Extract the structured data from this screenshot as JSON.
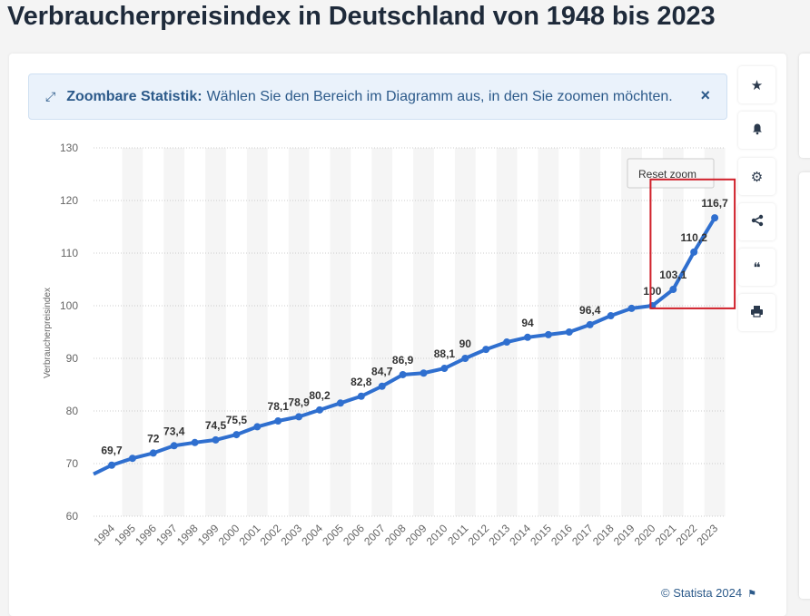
{
  "page": {
    "title": "Verbraucherpreisindex in Deutschland von 1948 bis 2023"
  },
  "banner": {
    "icon": "expand-icon",
    "strong": "Zoombare Statistik:",
    "text": "Wählen Sie den Bereich im Diagramm aus, in den Sie zoomen möchten.",
    "close": "×"
  },
  "chart": {
    "reset_label": "Reset zoom",
    "copyright": "© Statista 2024",
    "copyright_icon": "flag-icon"
  },
  "sidebar": {
    "buttons": [
      {
        "name": "favorite-button",
        "icon": "star-icon",
        "glyph": "★"
      },
      {
        "name": "notification-button",
        "icon": "bell-icon",
        "glyph": "🔔"
      },
      {
        "name": "settings-button",
        "icon": "gear-icon",
        "glyph": "⚙"
      },
      {
        "name": "share-button",
        "icon": "share-icon",
        "glyph": "share"
      },
      {
        "name": "cite-button",
        "icon": "quote-icon",
        "glyph": "❝"
      },
      {
        "name": "print-button",
        "icon": "printer-icon",
        "glyph": "⎙"
      }
    ]
  },
  "colors": {
    "line": "#2f6fcf",
    "highlight_box": "#d0202a",
    "band": "#f5f5f5",
    "grid": "#cccccc"
  },
  "chart_data": {
    "type": "line",
    "title": "Verbraucherpreisindex in Deutschland von 1948 bis 2023",
    "ylabel": "Verbraucherpreisindex",
    "xlabel": "",
    "ylim": [
      60,
      130
    ],
    "yticks": [
      60,
      70,
      80,
      90,
      100,
      110,
      120,
      130
    ],
    "grid": "horizontal dotted",
    "legend": "none",
    "categories": [
      "1994",
      "1995",
      "1996",
      "1997",
      "1998",
      "1999",
      "2000",
      "2001",
      "2002",
      "2003",
      "2004",
      "2005",
      "2006",
      "2007",
      "2008",
      "2009",
      "2010",
      "2011",
      "2012",
      "2013",
      "2014",
      "2015",
      "2016",
      "2017",
      "2018",
      "2019",
      "2020",
      "2021",
      "2022",
      "2023"
    ],
    "values": [
      69.7,
      71.0,
      72.0,
      73.4,
      74.0,
      74.5,
      75.5,
      77.0,
      78.1,
      78.9,
      80.2,
      81.5,
      82.8,
      84.7,
      86.9,
      87.2,
      88.1,
      90.0,
      91.7,
      93.1,
      94.0,
      94.5,
      95.0,
      96.4,
      98.1,
      99.5,
      100.0,
      103.1,
      110.2,
      116.7
    ],
    "start_value": 68.0,
    "data_labels": [
      {
        "index": 0,
        "text": "69,7"
      },
      {
        "index": 2,
        "text": "72"
      },
      {
        "index": 3,
        "text": "73,4"
      },
      {
        "index": 5,
        "text": "74,5"
      },
      {
        "index": 6,
        "text": "75,5"
      },
      {
        "index": 8,
        "text": "78,1"
      },
      {
        "index": 9,
        "text": "78,9"
      },
      {
        "index": 10,
        "text": "80,2"
      },
      {
        "index": 12,
        "text": "82,8"
      },
      {
        "index": 13,
        "text": "84,7"
      },
      {
        "index": 14,
        "text": "86,9"
      },
      {
        "index": 16,
        "text": "88,1"
      },
      {
        "index": 17,
        "text": "90"
      },
      {
        "index": 20,
        "text": "94"
      },
      {
        "index": 23,
        "text": "96,4"
      },
      {
        "index": 26,
        "text": "100"
      },
      {
        "index": 27,
        "text": "103,1"
      },
      {
        "index": 28,
        "text": "110,2"
      },
      {
        "index": 29,
        "text": "116,7"
      }
    ],
    "highlight": {
      "from_category": "2020",
      "to_category": "2023"
    }
  }
}
